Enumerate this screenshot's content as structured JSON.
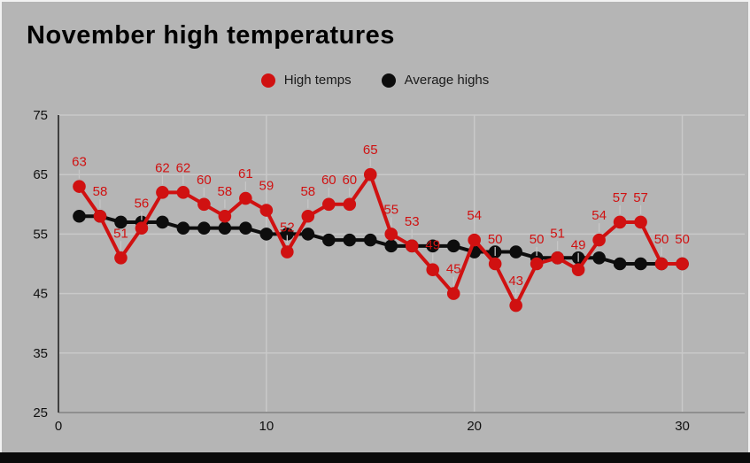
{
  "chart_data": {
    "type": "line",
    "title": "November high temperatures",
    "x": [
      1,
      2,
      3,
      4,
      5,
      6,
      7,
      8,
      9,
      10,
      11,
      12,
      13,
      14,
      15,
      16,
      17,
      18,
      19,
      20,
      21,
      22,
      23,
      24,
      25,
      26,
      27,
      28,
      29,
      30
    ],
    "series": [
      {
        "name": "Average highs",
        "color": "#0d0d0d",
        "show_point_labels": false,
        "values": [
          58,
          58,
          57,
          57,
          57,
          56,
          56,
          56,
          56,
          55,
          55,
          55,
          54,
          54,
          54,
          53,
          53,
          53,
          53,
          52,
          52,
          52,
          51,
          51,
          51,
          51,
          50,
          50,
          50,
          50
        ]
      },
      {
        "name": "High temps",
        "color": "#d01111",
        "show_point_labels": true,
        "values": [
          63,
          58,
          51,
          56,
          62,
          62,
          60,
          58,
          61,
          59,
          52,
          58,
          60,
          60,
          65,
          55,
          53,
          49,
          45,
          54,
          50,
          43,
          50,
          51,
          49,
          54,
          57,
          57,
          50,
          50
        ]
      }
    ],
    "legend_order": [
      "High temps",
      "Average highs"
    ],
    "legend_position": "top-center",
    "xlabel": "",
    "ylabel": "",
    "xlim": [
      0,
      33
    ],
    "ylim": [
      25,
      75
    ],
    "xticks": [
      "0",
      "10",
      "20",
      "30"
    ],
    "xtick_values": [
      0,
      10,
      20,
      30
    ],
    "yticks": [
      "25",
      "35",
      "45",
      "55",
      "65",
      "75"
    ],
    "ytick_values": [
      25,
      35,
      45,
      55,
      65,
      75
    ],
    "grid": "on",
    "colors": {
      "background": "#b5b5b5",
      "gridline": "#c9c9c9",
      "y_axis": "#3f3f3f",
      "x_axis": "#8f8f8f",
      "tick_text": "#111111",
      "label_leader": "#c6c6c6",
      "bottom_bar": "#0a0a0a"
    }
  }
}
